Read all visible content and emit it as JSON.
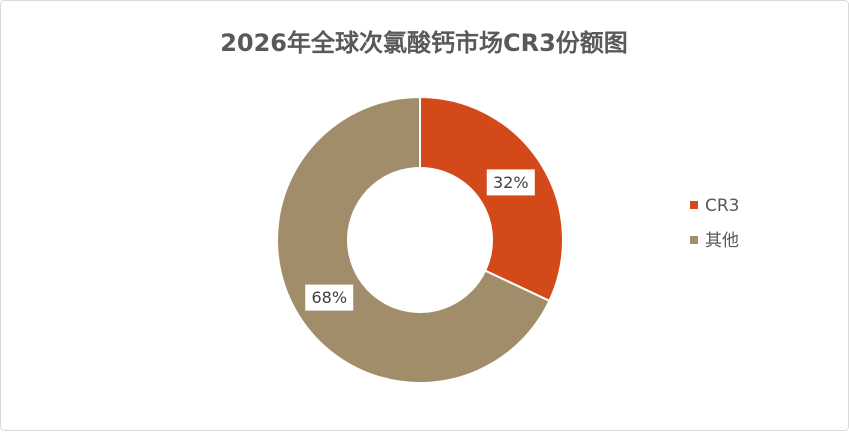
{
  "chart_data": {
    "type": "donut",
    "title": "2026年全球次氯酸钙市场CR3份额图",
    "categories": [
      "CR3",
      "其他"
    ],
    "values": [
      32,
      68
    ],
    "value_labels": [
      "32%",
      "68%"
    ],
    "colors": [
      "#d4491a",
      "#a18d69"
    ],
    "legend": "right"
  }
}
